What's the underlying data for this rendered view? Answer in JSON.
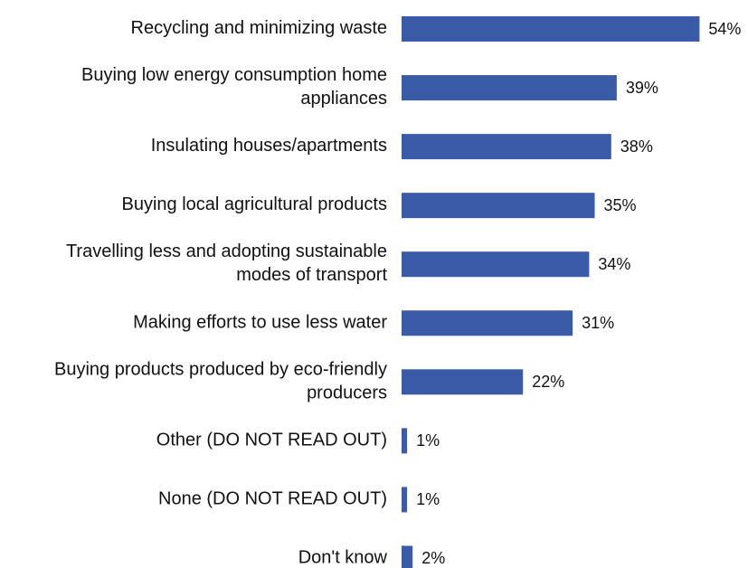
{
  "chart_data": {
    "type": "bar",
    "orientation": "horizontal",
    "color": "#3a5ca8",
    "categories": [
      "Recycling and minimizing waste",
      "Buying low energy consumption home\nappliances",
      "Insulating houses/apartments",
      "Buying local agricultural products",
      "Travelling less and adopting sustainable\nmodes of transport",
      "Making efforts to use less water",
      "Buying products produced by eco-friendly\nproducers",
      "Other (DO NOT READ OUT)",
      "None (DO NOT READ OUT)",
      "Don't know"
    ],
    "values": [
      54,
      39,
      38,
      35,
      34,
      31,
      22,
      1,
      1,
      2
    ],
    "value_labels": [
      "54%",
      "39%",
      "38%",
      "35%",
      "34%",
      "31%",
      "22%",
      "1%",
      "1%",
      "2%"
    ]
  }
}
